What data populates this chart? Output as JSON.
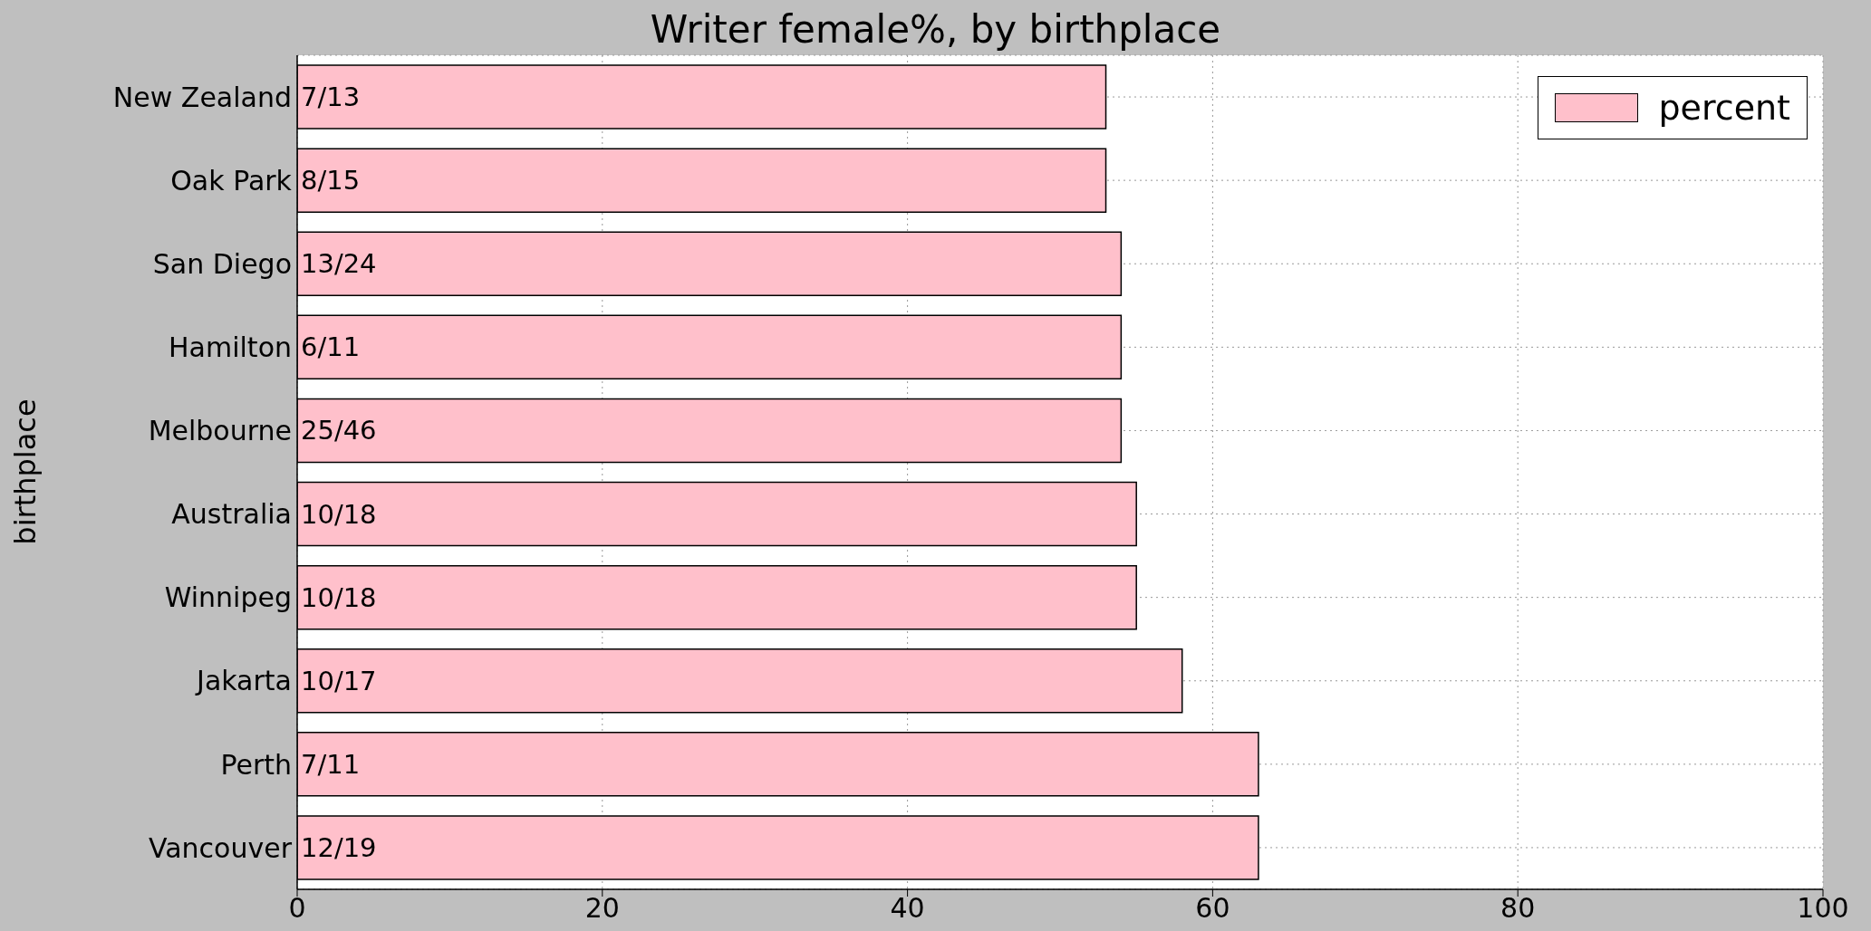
{
  "chart_data": {
    "type": "bar",
    "orientation": "horizontal",
    "title": "Writer female%, by birthplace",
    "ylabel": "birthplace",
    "categories": [
      "New Zealand",
      "Oak Park",
      "San Diego",
      "Hamilton",
      "Melbourne",
      "Australia",
      "Winnipeg",
      "Jakarta",
      "Perth",
      "Vancouver"
    ],
    "series": [
      {
        "name": "percent",
        "color": "#ffc0cb",
        "values": [
          53,
          53,
          54,
          54,
          54,
          55,
          55,
          58,
          63,
          63
        ],
        "value_labels": [
          "7/13",
          "8/15",
          "13/24",
          "6/11",
          "25/46",
          "10/18",
          "10/18",
          "10/17",
          "7/11",
          "12/19"
        ]
      }
    ],
    "xlim": [
      0,
      100
    ],
    "xticks": [
      0,
      20,
      40,
      60,
      80,
      100
    ],
    "grid": true,
    "legend": "top right"
  }
}
